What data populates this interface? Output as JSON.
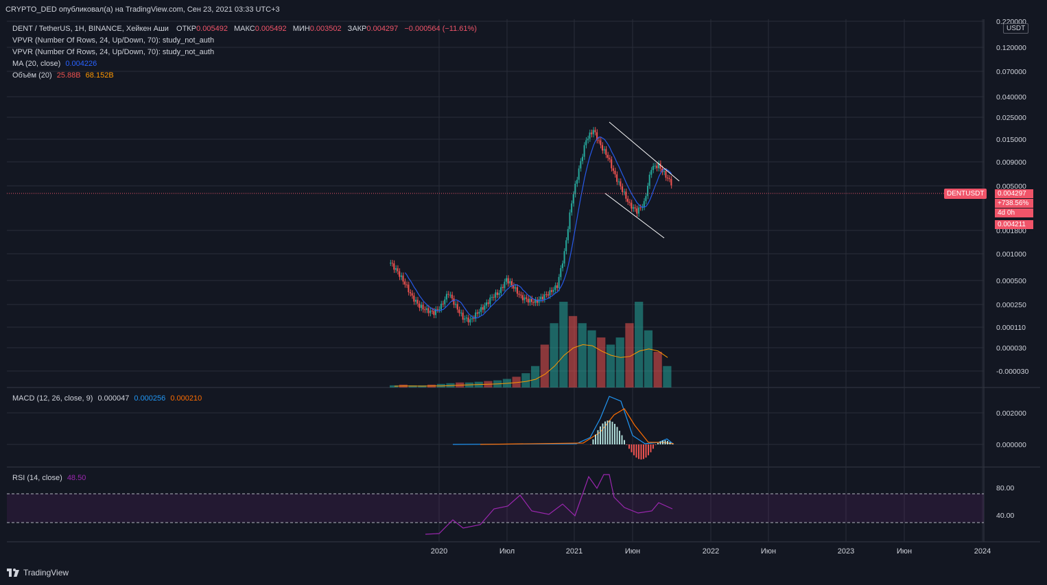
{
  "header": {
    "title": "CRYPTO_DED опубликовал(а) на TradingView.com, Сен 23, 2021 03:33 UTC+3"
  },
  "legend": {
    "symbol": "DENT / TetherUS, 1H, BINANCE, Хейкен Аши",
    "open_label": "ОТКР",
    "open": "0.005492",
    "high_label": "МАКС",
    "high": "0.005492",
    "low_label": "МИН",
    "low": "0.003502",
    "close_label": "ЗАКР",
    "close": "0.004297",
    "change": "−0.000564 (−11.61%)",
    "vpvr1": "VPVR (Number Of Rows, 24, Up/Down, 70): study_not_auth",
    "vpvr2": "VPVR (Number Of Rows, 24, Up/Down, 70): study_not_auth",
    "ma_label": "MA (20, close)",
    "ma_value": "0.004226",
    "vol_label": "Объём (20)",
    "vol_value1": "25.88B",
    "vol_value2": "68.152B",
    "macd_label": "MACD (12, 26, close, 9)",
    "macd_v1": "0.000047",
    "macd_v2": "0.000256",
    "macd_v3": "0.000210",
    "rsi_label": "RSI (14, close)",
    "rsi_value": "48.50"
  },
  "price_axis": {
    "unit": "USDT",
    "symbol_tag": "DENTUSDT",
    "last_price": "0.004297",
    "change_pct": "+738.56%",
    "countdown": "4d 0h",
    "ma_price": "0.004211"
  },
  "footer": {
    "brand": "TradingView"
  },
  "colors": {
    "up": "#26a69a",
    "down": "#ef5350",
    "ma": "#2962ff",
    "vol_ma": "#ff9800",
    "rsi": "#9c27b0",
    "macd": "#2196f3",
    "signal": "#ff6d00"
  },
  "chart_data": [
    {
      "type": "candlestick",
      "title": "DENT / TetherUS, 1H, BINANCE, Хейкен Аши",
      "y_scale": "log",
      "y_ticks": [
        "0.220000",
        "0.120000",
        "0.070000",
        "0.040000",
        "0.025000",
        "0.015000",
        "0.009000",
        "0.005000",
        "0.001800",
        "0.001000",
        "0.000500",
        "0.000250",
        "0.000110",
        "0.000030",
        "-0.000030"
      ],
      "x_ticks": [
        "2020",
        "Июл",
        "2021",
        "Июн",
        "2022",
        "Июн",
        "2023",
        "Июн",
        "2024"
      ],
      "grid": true,
      "price_series_approx": [
        0.00058,
        0.00046,
        0.00034,
        0.00024,
        0.00019,
        0.00017,
        0.00016,
        0.00019,
        0.00027,
        0.00019,
        0.00014,
        0.00013,
        0.00016,
        0.00019,
        0.00024,
        0.00027,
        0.00038,
        0.00031,
        0.00024,
        0.00022,
        0.00021,
        0.00024,
        0.00027,
        0.00032,
        0.00075,
        0.0028,
        0.0065,
        0.014,
        0.018,
        0.012,
        0.009,
        0.0055,
        0.0038,
        0.0026,
        0.0022,
        0.0027,
        0.0068,
        0.0072,
        0.0055,
        0.0043
      ],
      "ma_20_last": 0.004226,
      "last_close": 0.004297
    },
    {
      "type": "bar",
      "title": "Объём (20)",
      "values_approx": [
        0.3,
        0.4,
        0.3,
        0.3,
        0.4,
        0.5,
        0.6,
        0.7,
        0.7,
        0.8,
        0.9,
        1.0,
        1.2,
        1.5,
        2.0,
        3.0,
        6.0,
        9.0,
        12.0,
        10.0,
        9.0,
        8.0,
        7.0,
        6.0,
        7.0,
        9.0,
        12.0,
        8.0,
        5.0,
        3.0
      ],
      "last": "25.88B",
      "ma_last": "68.152B"
    },
    {
      "type": "line",
      "title": "MACD (12, 26, close, 9)",
      "y_ticks": [
        "0.002000",
        "0.000000"
      ],
      "values": {
        "macd": "0.000047",
        "signal": "0.000256",
        "hist": "0.000210"
      }
    },
    {
      "type": "line",
      "title": "RSI (14, close)",
      "y_ticks": [
        "80.00",
        "40.00"
      ],
      "band": [
        30,
        70
      ],
      "last": "48.50"
    }
  ]
}
